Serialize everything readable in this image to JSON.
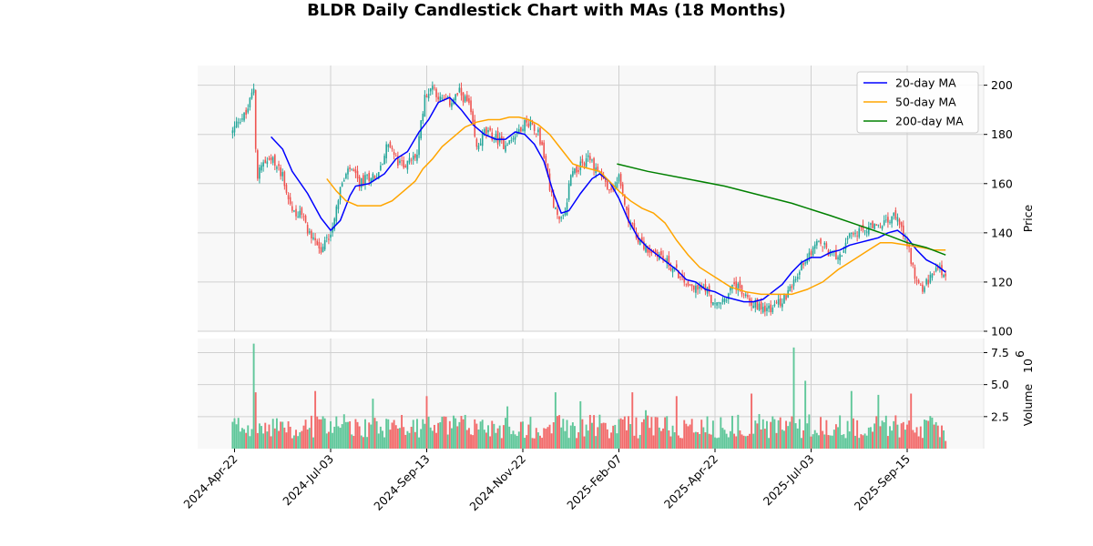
{
  "chart_data": {
    "type": "candlestick",
    "title": "BLDR Daily Candlestick Chart with MAs (18 Months)",
    "price_panel": {
      "ylabel": "Price",
      "ylim": [
        100,
        208
      ],
      "yticks": [
        100,
        120,
        140,
        160,
        180,
        200
      ],
      "grid": true,
      "legend_position": "top-right"
    },
    "volume_panel": {
      "ylabel": "Volume",
      "ylabel_exponent": "10",
      "ylabel_exponent_power": "6",
      "ylim": [
        0,
        8.6
      ],
      "yticks": [
        "2.5",
        "5.0",
        "7.5"
      ],
      "ytick_values": [
        2.5,
        5.0,
        7.5
      ]
    },
    "x_tick_labels": [
      "2024-Apr-22",
      "2024-Jul-03",
      "2024-Sep-13",
      "2024-Nov-22",
      "2025-Feb-07",
      "2025-Apr-22",
      "2025-Jul-03",
      "2025-Sep-15"
    ],
    "x_tick_positions": [
      0,
      50,
      100,
      150,
      200,
      250,
      300,
      350
    ],
    "x_range": [
      -20,
      372
    ],
    "price_anchors": [
      [
        -1,
        181
      ],
      [
        2,
        186
      ],
      [
        6,
        188
      ],
      [
        10,
        199
      ],
      [
        11,
        176
      ],
      [
        12,
        164
      ],
      [
        15,
        168
      ],
      [
        20,
        169
      ],
      [
        25,
        164
      ],
      [
        27,
        157
      ],
      [
        30,
        149
      ],
      [
        35,
        147
      ],
      [
        40,
        138
      ],
      [
        43,
        137
      ],
      [
        45,
        132
      ],
      [
        47,
        136
      ],
      [
        50,
        140
      ],
      [
        55,
        158
      ],
      [
        60,
        166
      ],
      [
        65,
        160
      ],
      [
        70,
        163
      ],
      [
        75,
        164
      ],
      [
        80,
        177
      ],
      [
        85,
        168
      ],
      [
        90,
        168
      ],
      [
        95,
        172
      ],
      [
        99,
        196
      ],
      [
        103,
        200
      ],
      [
        107,
        194
      ],
      [
        112,
        193
      ],
      [
        117,
        197
      ],
      [
        122,
        192
      ],
      [
        126,
        174
      ],
      [
        130,
        181
      ],
      [
        135,
        179
      ],
      [
        140,
        176
      ],
      [
        146,
        180
      ],
      [
        150,
        184
      ],
      [
        154,
        185
      ],
      [
        158,
        181
      ],
      [
        162,
        168
      ],
      [
        166,
        150
      ],
      [
        170,
        145
      ],
      [
        172,
        148
      ],
      [
        175,
        165
      ],
      [
        180,
        167
      ],
      [
        184,
        171
      ],
      [
        188,
        166
      ],
      [
        191,
        164
      ],
      [
        195,
        156
      ],
      [
        200,
        162
      ],
      [
        205,
        146
      ],
      [
        210,
        138
      ],
      [
        215,
        133
      ],
      [
        220,
        132
      ],
      [
        225,
        128
      ],
      [
        230,
        124
      ],
      [
        235,
        120
      ],
      [
        240,
        117
      ],
      [
        245,
        118
      ],
      [
        250,
        110
      ],
      [
        255,
        113
      ],
      [
        260,
        119
      ],
      [
        265,
        115
      ],
      [
        270,
        111
      ],
      [
        275,
        110
      ],
      [
        280,
        109
      ],
      [
        285,
        113
      ],
      [
        290,
        117
      ],
      [
        295,
        127
      ],
      [
        300,
        133
      ],
      [
        305,
        136
      ],
      [
        310,
        131
      ],
      [
        315,
        131
      ],
      [
        320,
        138
      ],
      [
        325,
        140
      ],
      [
        330,
        142
      ],
      [
        335,
        142
      ],
      [
        340,
        145
      ],
      [
        345,
        147
      ],
      [
        350,
        136
      ],
      [
        353,
        126
      ],
      [
        355,
        120
      ],
      [
        358,
        118
      ],
      [
        362,
        121
      ],
      [
        365,
        124
      ],
      [
        367,
        126
      ],
      [
        370,
        121
      ]
    ],
    "gaps": [
      [
        11,
        12
      ],
      [
        200,
        201
      ],
      [
        201,
        202
      ],
      [
        202,
        203
      ],
      [
        203,
        204
      ],
      [
        204,
        205
      ],
      [
        205,
        206
      ],
      [
        206,
        207
      ],
      [
        207,
        208
      ],
      [
        208,
        209
      ],
      [
        209,
        210
      ]
    ],
    "volume_spikes": [
      [
        10,
        8.2
      ],
      [
        11,
        4.4
      ],
      [
        42,
        4.5
      ],
      [
        72,
        3.9
      ],
      [
        100,
        4.1
      ],
      [
        142,
        3.3
      ],
      [
        167,
        4.4
      ],
      [
        180,
        3.7
      ],
      [
        207,
        4.4
      ],
      [
        214,
        3.0
      ],
      [
        230,
        4.1
      ],
      [
        269,
        4.3
      ],
      [
        291,
        7.9
      ],
      [
        297,
        5.3
      ],
      [
        321,
        4.5
      ],
      [
        335,
        4.2
      ],
      [
        352,
        4.3
      ]
    ],
    "series": [
      {
        "name": "20-day MA",
        "color": "#0000ff",
        "points": [
          [
            19,
            179
          ],
          [
            25,
            174
          ],
          [
            30,
            165
          ],
          [
            38,
            156
          ],
          [
            45,
            146
          ],
          [
            50,
            141
          ],
          [
            55,
            145
          ],
          [
            60,
            155
          ],
          [
            63,
            159
          ],
          [
            70,
            160
          ],
          [
            78,
            164
          ],
          [
            84,
            170
          ],
          [
            90,
            173
          ],
          [
            96,
            181
          ],
          [
            101,
            186
          ],
          [
            106,
            193
          ],
          [
            112,
            195
          ],
          [
            118,
            190
          ],
          [
            124,
            184
          ],
          [
            130,
            180
          ],
          [
            136,
            178
          ],
          [
            141,
            178
          ],
          [
            146,
            181
          ],
          [
            151,
            180
          ],
          [
            156,
            176
          ],
          [
            161,
            169
          ],
          [
            166,
            156
          ],
          [
            170,
            148
          ],
          [
            174,
            149
          ],
          [
            180,
            156
          ],
          [
            186,
            162
          ],
          [
            190,
            164
          ],
          [
            195,
            161
          ],
          [
            200,
            154
          ],
          [
            205,
            145
          ],
          [
            210,
            138
          ],
          [
            215,
            134
          ],
          [
            220,
            131
          ],
          [
            225,
            128
          ],
          [
            230,
            125
          ],
          [
            235,
            121
          ],
          [
            240,
            120
          ],
          [
            245,
            117
          ],
          [
            250,
            116
          ],
          [
            255,
            114
          ],
          [
            260,
            113
          ],
          [
            265,
            112
          ],
          [
            270,
            112
          ],
          [
            275,
            113
          ],
          [
            280,
            116
          ],
          [
            285,
            119
          ],
          [
            290,
            124
          ],
          [
            295,
            128
          ],
          [
            300,
            130
          ],
          [
            305,
            130
          ],
          [
            310,
            132
          ],
          [
            315,
            133
          ],
          [
            320,
            135
          ],
          [
            325,
            136
          ],
          [
            330,
            137
          ],
          [
            335,
            138
          ],
          [
            340,
            140
          ],
          [
            345,
            141
          ],
          [
            350,
            138
          ],
          [
            355,
            133
          ],
          [
            360,
            129
          ],
          [
            365,
            127
          ],
          [
            370,
            124
          ]
        ]
      },
      {
        "name": "50-day MA",
        "color": "#ffa500",
        "points": [
          [
            48,
            162
          ],
          [
            53,
            157
          ],
          [
            58,
            153
          ],
          [
            64,
            151
          ],
          [
            70,
            151
          ],
          [
            76,
            151
          ],
          [
            82,
            153
          ],
          [
            88,
            157
          ],
          [
            94,
            161
          ],
          [
            98,
            166
          ],
          [
            103,
            170
          ],
          [
            108,
            175
          ],
          [
            114,
            179
          ],
          [
            120,
            183
          ],
          [
            126,
            185
          ],
          [
            132,
            186
          ],
          [
            138,
            186
          ],
          [
            143,
            187
          ],
          [
            148,
            187
          ],
          [
            153,
            186
          ],
          [
            158,
            184
          ],
          [
            164,
            180
          ],
          [
            170,
            174
          ],
          [
            176,
            168
          ],
          [
            180,
            167
          ],
          [
            185,
            166
          ],
          [
            190,
            165
          ],
          [
            195,
            161
          ],
          [
            200,
            157
          ],
          [
            206,
            153
          ],
          [
            212,
            150
          ],
          [
            218,
            148
          ],
          [
            224,
            144
          ],
          [
            230,
            137
          ],
          [
            236,
            131
          ],
          [
            242,
            126
          ],
          [
            250,
            122
          ],
          [
            258,
            118
          ],
          [
            266,
            116
          ],
          [
            274,
            115
          ],
          [
            282,
            115
          ],
          [
            290,
            115
          ],
          [
            298,
            117
          ],
          [
            306,
            120
          ],
          [
            314,
            125
          ],
          [
            322,
            129
          ],
          [
            330,
            133
          ],
          [
            336,
            136
          ],
          [
            342,
            136
          ],
          [
            350,
            135
          ],
          [
            358,
            134
          ],
          [
            364,
            133
          ],
          [
            370,
            133
          ]
        ]
      },
      {
        "name": "200-day MA",
        "color": "#008000",
        "points": [
          [
            199,
            168
          ],
          [
            215,
            165
          ],
          [
            235,
            162
          ],
          [
            255,
            159
          ],
          [
            270,
            156
          ],
          [
            290,
            152
          ],
          [
            310,
            147
          ],
          [
            325,
            143
          ],
          [
            340,
            139
          ],
          [
            350,
            136
          ],
          [
            360,
            134
          ],
          [
            370,
            131
          ]
        ]
      }
    ],
    "colors": {
      "up": "#26a69a",
      "down": "#ef5350"
    }
  }
}
